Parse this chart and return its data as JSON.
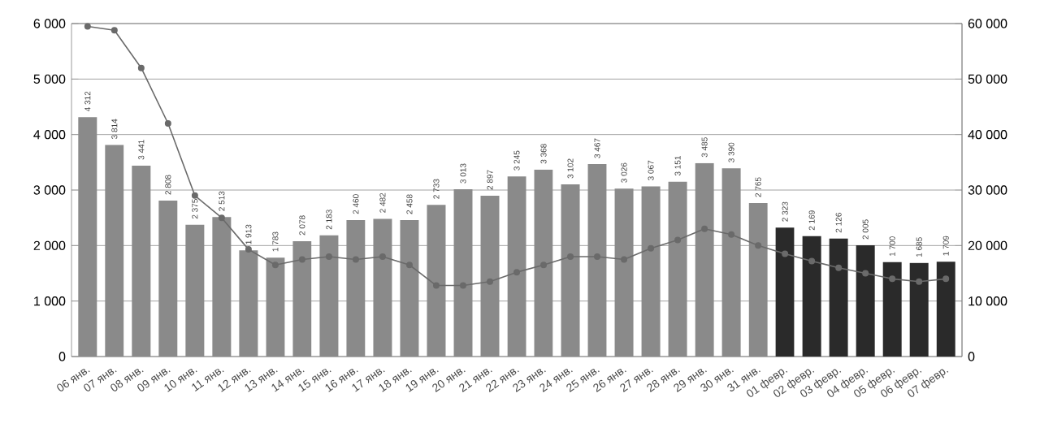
{
  "chart_data": {
    "type": "bar",
    "categories": [
      "06 янв.",
      "07 янв.",
      "08 янв.",
      "09 янв.",
      "10 янв.",
      "11 янв.",
      "12 янв.",
      "13 янв.",
      "14 янв.",
      "15 янв.",
      "16 янв.",
      "17 янв.",
      "18 янв.",
      "19 янв.",
      "20 янв.",
      "21 янв.",
      "22 янв.",
      "23 янв.",
      "24 янв.",
      "25 янв.",
      "26 янв.",
      "27 янв.",
      "28 янв.",
      "29 янв.",
      "30 янв.",
      "31 янв.",
      "01 февр.",
      "02 февр.",
      "03 февр.",
      "04 февр.",
      "05 февр.",
      "06 февр.",
      "07 февр."
    ],
    "series": [
      {
        "values": [
          4312,
          3814,
          3441,
          2808,
          2375,
          2513,
          1913,
          1783,
          2078,
          2183,
          2460,
          2482,
          2458,
          2733,
          3013,
          2897,
          3245,
          3368,
          3102,
          3467,
          3026,
          3067,
          3151,
          3485,
          3390,
          2765,
          2323,
          2169,
          2126,
          2005,
          1700,
          1685,
          1709
        ],
        "value_labels": [
          "4 312",
          "3 814",
          "3 441",
          "2 808",
          "2 375",
          "2 513",
          "1 913",
          "1 783",
          "2 078",
          "2 183",
          "2 460",
          "2 482",
          "2 458",
          "2 733",
          "3 013",
          "2 897",
          "3 245",
          "3 368",
          "3 102",
          "3 467",
          "3 026",
          "3 067",
          "3 151",
          "3 485",
          "3 390",
          "2 765",
          "2 323",
          "2 169",
          "2 126",
          "2 005",
          "1 700",
          "1 685",
          "1 709"
        ],
        "colors": [
          "#8a8a8a",
          "#8a8a8a",
          "#8a8a8a",
          "#8a8a8a",
          "#8a8a8a",
          "#8a8a8a",
          "#8a8a8a",
          "#8a8a8a",
          "#8a8a8a",
          "#8a8a8a",
          "#8a8a8a",
          "#8a8a8a",
          "#8a8a8a",
          "#8a8a8a",
          "#8a8a8a",
          "#8a8a8a",
          "#8a8a8a",
          "#8a8a8a",
          "#8a8a8a",
          "#8a8a8a",
          "#8a8a8a",
          "#8a8a8a",
          "#8a8a8a",
          "#8a8a8a",
          "#8a8a8a",
          "#8a8a8a",
          "#2a2a2a",
          "#2a2a2a",
          "#2a2a2a",
          "#2a2a2a",
          "#2a2a2a",
          "#2a2a2a",
          "#2a2a2a"
        ]
      },
      {
        "type": "line",
        "axis": "y2",
        "color": "#6a6a6a",
        "marker": "circle",
        "values": [
          59500,
          58800,
          52000,
          42000,
          29000,
          25000,
          19300,
          16500,
          17500,
          18000,
          17500,
          18000,
          16500,
          12800,
          12800,
          13500,
          15200,
          16500,
          18000,
          18000,
          17500,
          19500,
          21000,
          23000,
          22000,
          20000,
          18500,
          17200,
          16000,
          15000,
          14000,
          13500,
          14000
        ]
      }
    ],
    "ylim": [
      0,
      6000
    ],
    "yticks": [
      {
        "value": 0,
        "label": "0"
      },
      {
        "value": 1000,
        "label": "1 000"
      },
      {
        "value": 2000,
        "label": "2 000"
      },
      {
        "value": 3000,
        "label": "3 000"
      },
      {
        "value": 4000,
        "label": "4 000"
      },
      {
        "value": 5000,
        "label": "5 000"
      },
      {
        "value": 6000,
        "label": "6 000"
      }
    ],
    "y2lim": [
      0,
      60000
    ],
    "y2ticks": [
      {
        "value": 0,
        "label": "0"
      },
      {
        "value": 10000,
        "label": "10 000"
      },
      {
        "value": 20000,
        "label": "20 000"
      },
      {
        "value": 30000,
        "label": "30 000"
      },
      {
        "value": 40000,
        "label": "40 000"
      },
      {
        "value": 50000,
        "label": "50 000"
      },
      {
        "value": 60000,
        "label": "60 000"
      }
    ],
    "grid": "y"
  }
}
